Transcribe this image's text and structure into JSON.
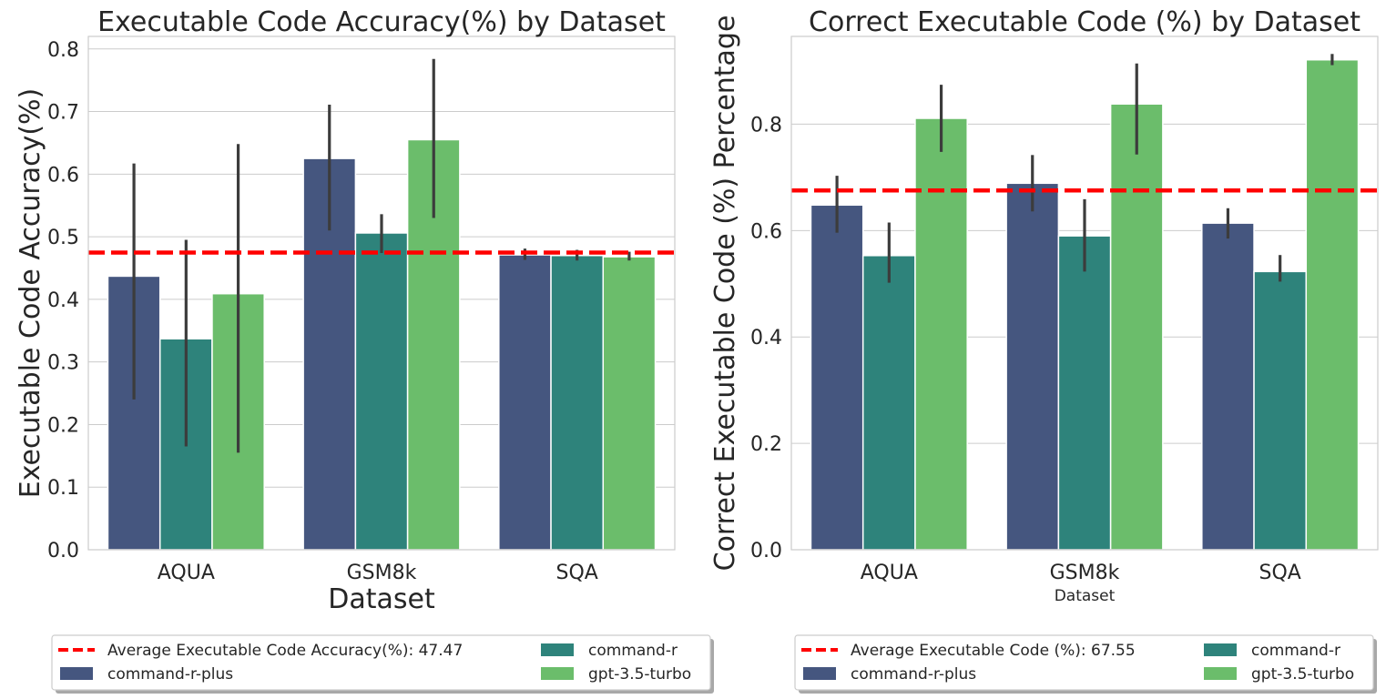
{
  "colors": {
    "command-r-plus": "#45567f",
    "command-r": "#2e837b",
    "gpt-3.5-turbo": "#6bbd6b",
    "average": "#ff0000"
  },
  "chart_data": [
    {
      "type": "bar",
      "title": "Executable Code Accuracy(%) by Dataset",
      "xlabel": "Dataset",
      "ylabel": "Executable Code Accuracy(%)",
      "ylim": [
        0,
        0.82
      ],
      "yticks": [
        0.0,
        0.1,
        0.2,
        0.3,
        0.4,
        0.5,
        0.6,
        0.7,
        0.8
      ],
      "ytick_labels": [
        "0.0",
        "0.1",
        "0.2",
        "0.3",
        "0.4",
        "0.5",
        "0.6",
        "0.7",
        "0.8"
      ],
      "grid": true,
      "categories": [
        "AQUA",
        "GSM8k",
        "SQA"
      ],
      "series": [
        {
          "name": "command-r-plus",
          "values": [
            0.437,
            0.625,
            0.471
          ],
          "err_low": [
            0.24,
            0.51,
            0.463
          ],
          "err_high": [
            0.617,
            0.711,
            0.481
          ]
        },
        {
          "name": "command-r",
          "values": [
            0.337,
            0.506,
            0.47
          ],
          "err_low": [
            0.165,
            0.474,
            0.462
          ],
          "err_high": [
            0.495,
            0.536,
            0.479
          ]
        },
        {
          "name": "gpt-3.5-turbo",
          "values": [
            0.409,
            0.655,
            0.468
          ],
          "err_low": [
            0.155,
            0.53,
            0.462
          ],
          "err_high": [
            0.648,
            0.784,
            0.476
          ]
        }
      ],
      "average": {
        "value": 0.4747,
        "label": "Average Executable Code Accuracy(%): 47.47"
      },
      "legend": {
        "placement": "below",
        "entries": [
          "Average Executable Code Accuracy(%): 47.47",
          "command-r-plus",
          "command-r",
          "gpt-3.5-turbo"
        ]
      }
    },
    {
      "type": "bar",
      "title": "Correct Executable Code (%) by Dataset",
      "xlabel": "Dataset",
      "ylabel": "Correct Executable Code (%) Percentage",
      "ylim": [
        0,
        0.965
      ],
      "yticks": [
        0.0,
        0.2,
        0.4,
        0.6,
        0.8
      ],
      "ytick_labels": [
        "0.0",
        "0.2",
        "0.4",
        "0.6",
        "0.8"
      ],
      "grid": true,
      "categories": [
        "AQUA",
        "GSM8k",
        "SQA"
      ],
      "series": [
        {
          "name": "command-r-plus",
          "values": [
            0.648,
            0.689,
            0.614
          ],
          "err_low": [
            0.596,
            0.636,
            0.585
          ],
          "err_high": [
            0.703,
            0.742,
            0.642
          ]
        },
        {
          "name": "command-r",
          "values": [
            0.553,
            0.59,
            0.523
          ],
          "err_low": [
            0.502,
            0.523,
            0.504
          ],
          "err_high": [
            0.615,
            0.659,
            0.554
          ]
        },
        {
          "name": "gpt-3.5-turbo",
          "values": [
            0.811,
            0.838,
            0.921
          ],
          "err_low": [
            0.748,
            0.743,
            0.911
          ],
          "err_high": [
            0.874,
            0.914,
            0.932
          ]
        }
      ],
      "average": {
        "value": 0.6755,
        "label": "Average Executable Code (%): 67.55"
      },
      "legend": {
        "placement": "below",
        "entries": [
          "Average Executable Code (%): 67.55",
          "command-r-plus",
          "command-r",
          "gpt-3.5-turbo"
        ]
      }
    }
  ]
}
